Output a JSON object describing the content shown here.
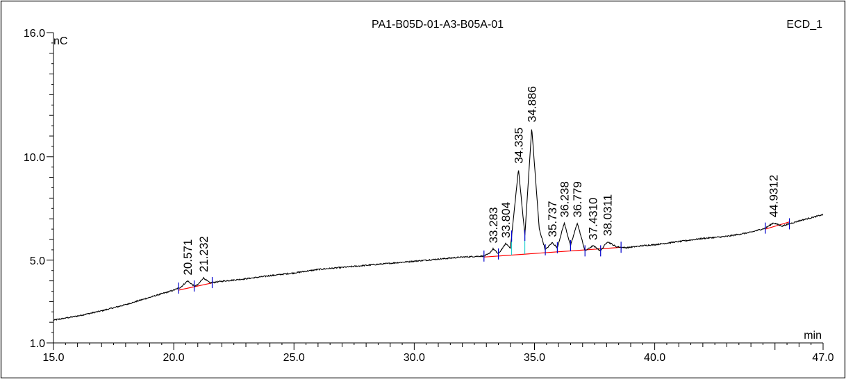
{
  "chart_data": {
    "type": "line",
    "title": "PA1-B05D-01-A3-B05A-01",
    "detector": "ECD_1",
    "xlabel": "min",
    "ylabel": "nC",
    "xlim": [
      15.0,
      47.0
    ],
    "ylim": [
      1.0,
      16.0
    ],
    "x_ticks": [
      "15.0",
      "20.0",
      "25.0",
      "30.0",
      "35.0",
      "40.0",
      "47.0"
    ],
    "y_ticks": [
      "1.0",
      "5.0",
      "10.0",
      "16.0"
    ],
    "grid": false,
    "colors": {
      "trace": "#000000",
      "baseline": "#ff0000",
      "markers": "#0000cc",
      "drop_lines": "#00c8c8"
    },
    "series": [
      {
        "x": [
          15.0,
          16.0,
          17.0,
          18.0,
          19.0,
          20.0,
          20.3,
          20.571,
          20.85,
          21.0,
          21.232,
          21.5,
          22.0,
          23.0,
          24.0,
          25.0,
          26.0,
          27.0,
          28.0,
          29.0,
          30.0,
          31.0,
          32.0,
          32.9,
          33.1,
          33.283,
          33.5,
          33.804,
          34.0,
          34.335,
          34.6,
          34.886,
          35.2,
          35.45,
          35.737,
          35.95,
          36.238,
          36.5,
          36.779,
          37.1,
          37.431,
          37.75,
          38.031,
          38.4,
          38.8,
          39.5,
          40.0,
          41.0,
          42.0,
          43.0,
          44.0,
          44.6,
          44.931,
          45.3,
          46.0,
          47.0
        ],
        "values": [
          2.1,
          2.3,
          2.55,
          2.85,
          3.2,
          3.55,
          3.7,
          4.0,
          3.75,
          3.8,
          4.15,
          3.9,
          3.98,
          4.1,
          4.25,
          4.38,
          4.55,
          4.65,
          4.75,
          4.85,
          4.95,
          5.05,
          5.15,
          5.2,
          5.3,
          5.55,
          5.3,
          5.8,
          5.6,
          9.4,
          6.2,
          11.4,
          6.5,
          5.5,
          5.85,
          5.6,
          6.8,
          5.7,
          6.8,
          5.45,
          5.7,
          5.45,
          5.9,
          5.65,
          5.6,
          5.7,
          5.75,
          5.9,
          6.05,
          6.15,
          6.35,
          6.55,
          6.8,
          6.65,
          6.9,
          7.2
        ]
      }
    ],
    "peaks": [
      {
        "label": "20.571",
        "rt": 20.571,
        "height": 4.0
      },
      {
        "label": "21.232",
        "rt": 21.232,
        "height": 4.15
      },
      {
        "label": "33.283",
        "rt": 33.283,
        "height": 5.55
      },
      {
        "label": "33.804",
        "rt": 33.804,
        "height": 5.8
      },
      {
        "label": "34.335",
        "rt": 34.335,
        "height": 9.4
      },
      {
        "label": "34.886",
        "rt": 34.886,
        "height": 11.4
      },
      {
        "label": "35.737",
        "rt": 35.737,
        "height": 5.85
      },
      {
        "label": "36.238",
        "rt": 36.238,
        "height": 6.8
      },
      {
        "label": "36.779",
        "rt": 36.779,
        "height": 6.8
      },
      {
        "label": "37.4310",
        "rt": 37.431,
        "height": 5.7
      },
      {
        "label": "38.0311",
        "rt": 38.031,
        "height": 5.9
      },
      {
        "label": "44.9312",
        "rt": 44.931,
        "height": 6.8
      }
    ],
    "integration_baselines": [
      {
        "x": [
          20.2,
          21.6
        ],
        "y": [
          3.55,
          3.9
        ]
      },
      {
        "x": [
          32.9,
          38.6
        ],
        "y": [
          5.15,
          5.62
        ]
      },
      {
        "x": [
          44.6,
          45.6
        ],
        "y": [
          6.5,
          6.85
        ]
      }
    ],
    "peak_boundaries": [
      20.2,
      20.85,
      21.6,
      32.9,
      33.5,
      34.05,
      34.6,
      35.45,
      35.95,
      36.5,
      37.1,
      37.75,
      38.6,
      44.6,
      45.6
    ],
    "drop_lines": [
      33.5,
      34.05,
      34.6,
      35.45,
      35.95,
      36.5,
      37.1,
      37.75
    ]
  }
}
